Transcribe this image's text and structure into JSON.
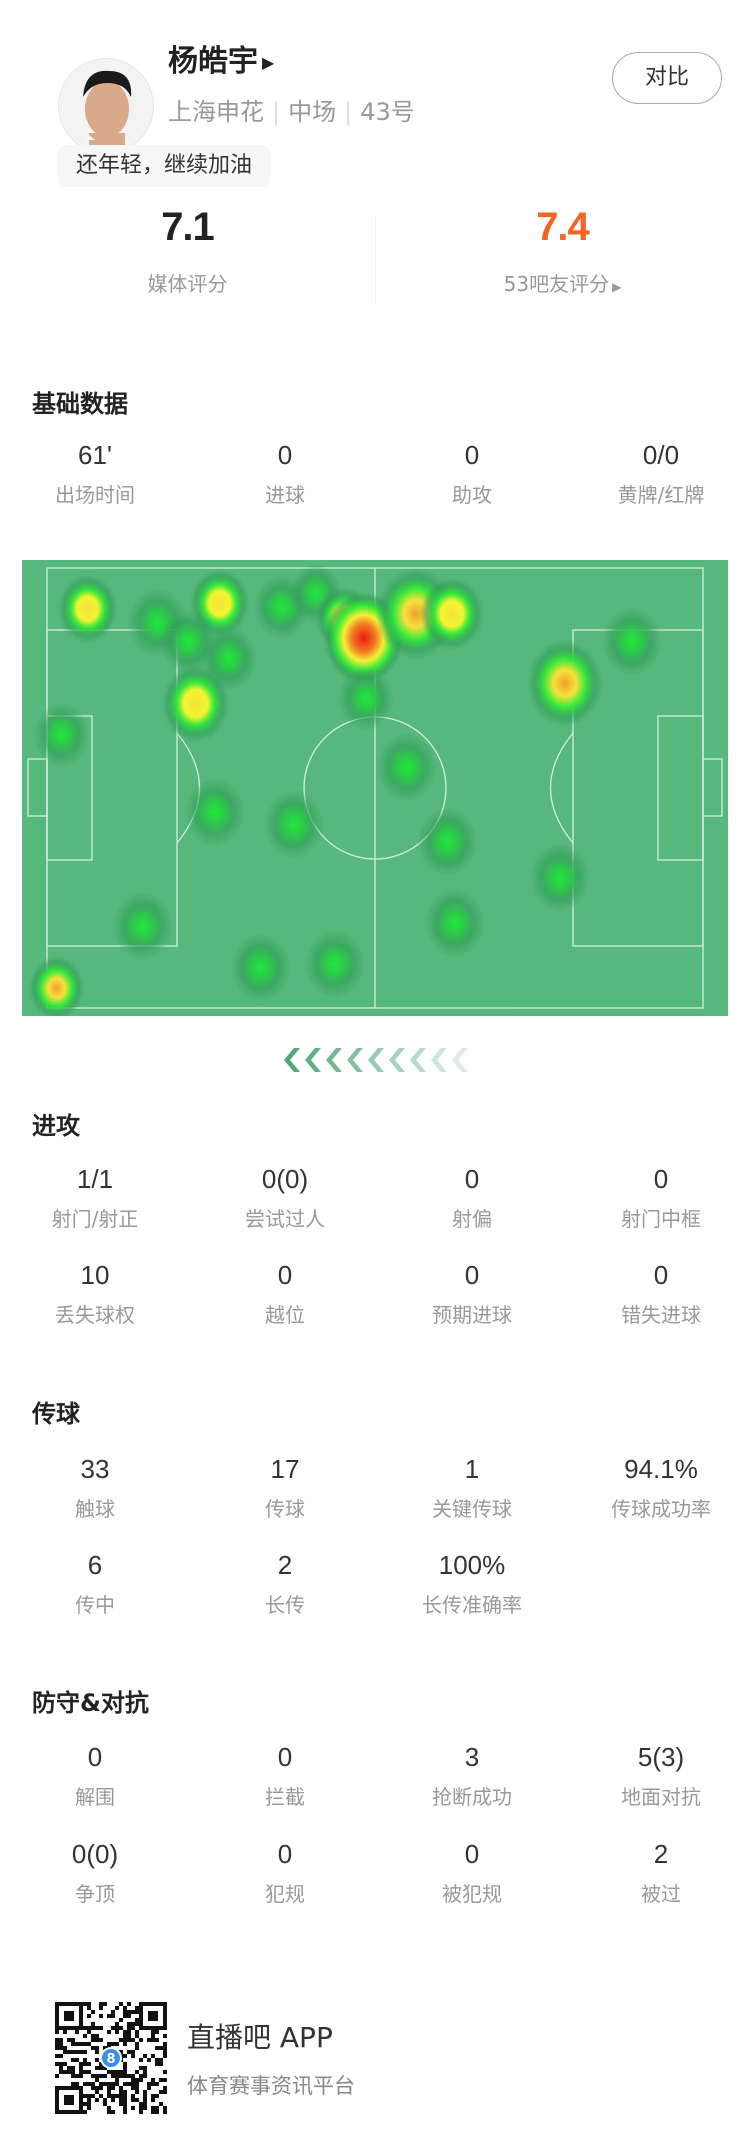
{
  "player": {
    "name": "杨皓宇",
    "team": "上海申花",
    "position": "中场",
    "number": "43号",
    "comment": "还年轻，继续加油",
    "compare_label": "对比"
  },
  "ratings": {
    "media": {
      "value": "7.1",
      "label": "媒体评分"
    },
    "fans": {
      "value": "7.4",
      "label": "53吧友评分",
      "color": "#f26522"
    }
  },
  "sections": [
    {
      "title": "基础数据",
      "rows": [
        [
          {
            "v": "61'",
            "l": "出场时间"
          },
          {
            "v": "0",
            "l": "进球"
          },
          {
            "v": "0",
            "l": "助攻"
          },
          {
            "v": "0/0",
            "l": "黄牌/红牌"
          }
        ]
      ]
    },
    {
      "title": "进攻",
      "rows": [
        [
          {
            "v": "1/1",
            "l": "射门/射正"
          },
          {
            "v": "0(0)",
            "l": "尝试过人"
          },
          {
            "v": "0",
            "l": "射偏"
          },
          {
            "v": "0",
            "l": "射门中框"
          }
        ],
        [
          {
            "v": "10",
            "l": "丢失球权"
          },
          {
            "v": "0",
            "l": "越位"
          },
          {
            "v": "0",
            "l": "预期进球"
          },
          {
            "v": "0",
            "l": "错失进球"
          }
        ]
      ]
    },
    {
      "title": "传球",
      "rows": [
        [
          {
            "v": "33",
            "l": "触球"
          },
          {
            "v": "17",
            "l": "传球"
          },
          {
            "v": "1",
            "l": "关键传球"
          },
          {
            "v": "94.1%",
            "l": "传球成功率"
          }
        ],
        [
          {
            "v": "6",
            "l": "传中"
          },
          {
            "v": "2",
            "l": "长传"
          },
          {
            "v": "100%",
            "l": "长传准确率"
          }
        ]
      ]
    },
    {
      "title": "防守&对抗",
      "rows": [
        [
          {
            "v": "0",
            "l": "解围"
          },
          {
            "v": "0",
            "l": "拦截"
          },
          {
            "v": "3",
            "l": "抢断成功"
          },
          {
            "v": "5(3)",
            "l": "地面对抗"
          }
        ],
        [
          {
            "v": "0(0)",
            "l": "争顶"
          },
          {
            "v": "0",
            "l": "犯规"
          },
          {
            "v": "0",
            "l": "被犯规"
          },
          {
            "v": "2",
            "l": "被过"
          }
        ]
      ]
    }
  ],
  "heatmap": {
    "pitch_color": "#56b87c",
    "attack_direction": "left"
  },
  "footer": {
    "app_name": "直播吧 APP",
    "tagline": "体育赛事资讯平台",
    "qr_badge": "8"
  }
}
